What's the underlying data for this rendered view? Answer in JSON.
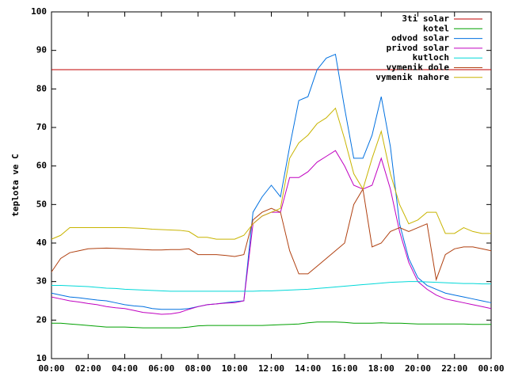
{
  "chart_data": {
    "type": "line",
    "ylabel": "teplota ve C",
    "x": [
      0,
      0.5,
      1,
      1.5,
      2,
      2.5,
      3,
      3.5,
      4,
      4.5,
      5,
      5.5,
      6,
      6.5,
      7,
      7.5,
      8,
      8.5,
      9,
      9.5,
      10,
      10.5,
      11,
      11.5,
      12,
      12.5,
      13,
      13.5,
      14,
      14.5,
      15,
      15.5,
      16,
      16.5,
      17,
      17.5,
      18,
      18.5,
      19,
      19.5,
      20,
      20.5,
      21,
      21.5,
      22,
      22.5,
      23,
      23.5,
      24
    ],
    "xlim": [
      0,
      24
    ],
    "xticks": [
      {
        "value": 0,
        "label": "00:00"
      },
      {
        "value": 2,
        "label": "02:00"
      },
      {
        "value": 4,
        "label": "04:00"
      },
      {
        "value": 6,
        "label": "06:00"
      },
      {
        "value": 8,
        "label": "08:00"
      },
      {
        "value": 10,
        "label": "10:00"
      },
      {
        "value": 12,
        "label": "12:00"
      },
      {
        "value": 14,
        "label": "14:00"
      },
      {
        "value": 16,
        "label": "16:00"
      },
      {
        "value": 18,
        "label": "18:00"
      },
      {
        "value": 20,
        "label": "20:00"
      },
      {
        "value": 22,
        "label": "22:00"
      },
      {
        "value": 24,
        "label": "00:00"
      }
    ],
    "ylim": [
      10,
      100
    ],
    "yticks": [
      10,
      20,
      30,
      40,
      50,
      60,
      70,
      80,
      90,
      100
    ],
    "legend": "top-right",
    "series": [
      {
        "name": "3ti solar",
        "color": "#c00000",
        "values": [
          85,
          85,
          85,
          85,
          85,
          85,
          85,
          85,
          85,
          85,
          85,
          85,
          85,
          85,
          85,
          85,
          85,
          85,
          85,
          85,
          85,
          85,
          85,
          85,
          85,
          85,
          85,
          85,
          85,
          85,
          85,
          85,
          85,
          85,
          85,
          85,
          85,
          85,
          85,
          85,
          85,
          85,
          85,
          85,
          85,
          85,
          85,
          85,
          85
        ]
      },
      {
        "name": "kotel",
        "color": "#00a000",
        "values": [
          19.2,
          19.2,
          19,
          18.8,
          18.6,
          18.4,
          18.2,
          18.2,
          18.2,
          18.1,
          18,
          18,
          18,
          18,
          18,
          18.2,
          18.5,
          18.6,
          18.6,
          18.6,
          18.6,
          18.6,
          18.6,
          18.6,
          18.7,
          18.8,
          18.9,
          19,
          19.3,
          19.5,
          19.5,
          19.5,
          19.4,
          19.2,
          19.2,
          19.2,
          19.3,
          19.2,
          19.2,
          19.1,
          19,
          19,
          19,
          19,
          19,
          19,
          18.9,
          18.9,
          18.9
        ]
      },
      {
        "name": "odvod solar",
        "color": "#0070e0",
        "values": [
          27,
          26.5,
          26,
          25.8,
          25.5,
          25.2,
          25,
          24.5,
          24,
          23.7,
          23.5,
          23,
          22.8,
          22.8,
          22.8,
          23,
          23.5,
          24,
          24.2,
          24.5,
          24.8,
          25,
          48,
          52,
          55,
          52,
          65,
          77,
          78,
          85,
          88,
          89,
          75,
          62,
          62,
          68,
          78,
          65,
          45,
          36,
          31,
          29,
          28,
          27,
          26.5,
          26,
          25.5,
          25,
          24.5
        ]
      },
      {
        "name": "privod solar",
        "color": "#c000c0",
        "values": [
          26,
          25.5,
          25,
          24.7,
          24.3,
          24,
          23.5,
          23.2,
          23,
          22.5,
          22,
          21.8,
          21.5,
          21.6,
          22,
          22.8,
          23.5,
          24,
          24.2,
          24.4,
          24.5,
          25,
          45,
          47,
          48,
          48,
          57,
          57,
          58.5,
          61,
          62.5,
          64,
          60,
          55,
          54,
          55,
          62,
          54,
          43,
          35,
          30,
          28,
          26.5,
          25.5,
          25,
          24.5,
          24,
          23.5,
          23
        ]
      },
      {
        "name": "kutloch",
        "color": "#00d8d8",
        "values": [
          29,
          29,
          28.9,
          28.8,
          28.7,
          28.5,
          28.3,
          28.2,
          28,
          27.9,
          27.8,
          27.7,
          27.6,
          27.5,
          27.5,
          27.5,
          27.5,
          27.5,
          27.5,
          27.5,
          27.5,
          27.5,
          27.5,
          27.6,
          27.6,
          27.7,
          27.8,
          27.9,
          28,
          28.2,
          28.4,
          28.6,
          28.8,
          29,
          29.2,
          29.4,
          29.6,
          29.8,
          29.9,
          30,
          30,
          29.9,
          29.8,
          29.7,
          29.6,
          29.5,
          29.5,
          29.4,
          29.4
        ]
      },
      {
        "name": "vymenik dole",
        "color": "#b04010",
        "values": [
          32.5,
          36,
          37.5,
          38,
          38.5,
          38.6,
          38.7,
          38.6,
          38.5,
          38.4,
          38.3,
          38.2,
          38.2,
          38.3,
          38.3,
          38.5,
          37,
          37,
          37,
          36.8,
          36.5,
          37,
          46,
          48,
          49,
          48,
          38,
          32,
          32,
          34,
          36,
          38,
          40,
          50,
          54,
          39,
          40,
          43,
          44,
          43,
          44,
          45,
          30.5,
          37,
          38.5,
          39,
          39,
          38.5,
          38
        ]
      },
      {
        "name": "vymenik nahore",
        "color": "#c8b400",
        "values": [
          41,
          42,
          44,
          44,
          44,
          44,
          44,
          44,
          44,
          43.9,
          43.8,
          43.6,
          43.5,
          43.4,
          43.3,
          43,
          41.5,
          41.5,
          41,
          41,
          41,
          42,
          45,
          47,
          48,
          49,
          62,
          66,
          68,
          71,
          72.5,
          75,
          67,
          58,
          54,
          62,
          69,
          58,
          50,
          45,
          46,
          48,
          48,
          42.5,
          42.5,
          44,
          43,
          42.5,
          42.5
        ]
      }
    ]
  }
}
